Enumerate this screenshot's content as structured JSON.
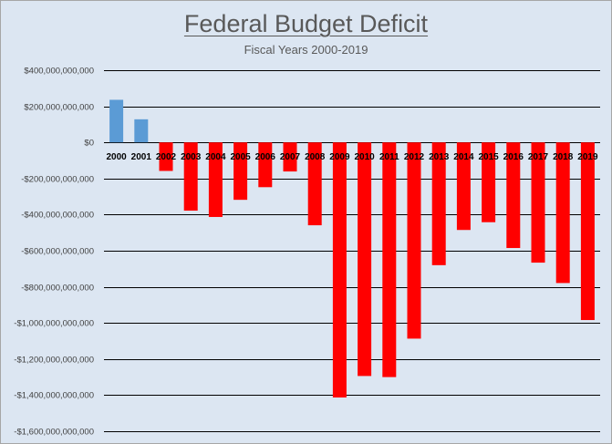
{
  "chart_data": {
    "type": "bar",
    "title": "Federal Budget Deficit",
    "subtitle": "Fiscal Years 2000-2019",
    "xlabel": "",
    "ylabel": "",
    "categories": [
      "2000",
      "2001",
      "2002",
      "2003",
      "2004",
      "2005",
      "2006",
      "2007",
      "2008",
      "2009",
      "2010",
      "2011",
      "2012",
      "2013",
      "2014",
      "2015",
      "2016",
      "2017",
      "2018",
      "2019"
    ],
    "values": [
      236000000000,
      128000000000,
      -158000000000,
      -378000000000,
      -413000000000,
      -318000000000,
      -248000000000,
      -161000000000,
      -459000000000,
      -1413000000000,
      -1294000000000,
      -1300000000000,
      -1087000000000,
      -680000000000,
      -485000000000,
      -442000000000,
      -585000000000,
      -666000000000,
      -779000000000,
      -984000000000
    ],
    "ylim": [
      -1600000000000,
      400000000000
    ],
    "yticks": [
      400000000000,
      200000000000,
      0,
      -200000000000,
      -400000000000,
      -600000000000,
      -800000000000,
      -1000000000000,
      -1200000000000,
      -1400000000000,
      -1600000000000
    ],
    "ytick_labels": [
      "$400,000,000,000",
      "$200,000,000,000",
      "$0",
      "-$200,000,000,000",
      "-$400,000,000,000",
      "-$600,000,000,000",
      "-$800,000,000,000",
      "-$1,000,000,000,000",
      "-$1,200,000,000,000",
      "-$1,400,000,000,000",
      "-$1,600,000,000,000"
    ],
    "grid": true,
    "colors": {
      "positive": "#5b9bd5",
      "negative": "#ff0000",
      "gridline": "#000000",
      "background": "#dce6f2"
    }
  }
}
